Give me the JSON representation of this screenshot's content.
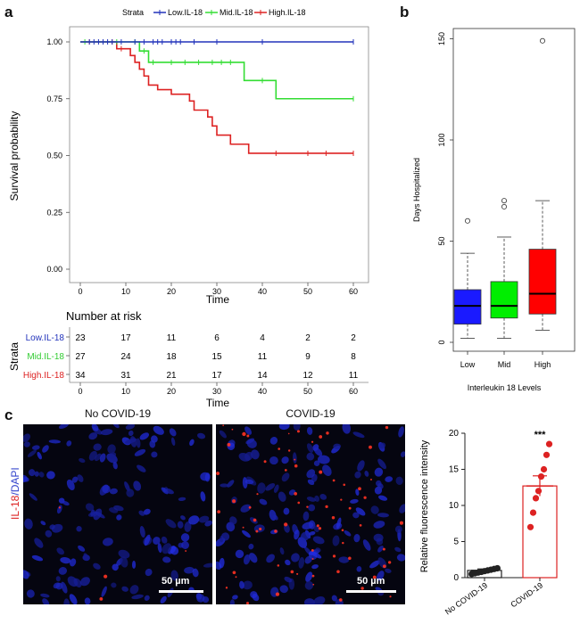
{
  "panels": {
    "a": "a",
    "b": "b",
    "c": "c"
  },
  "km": {
    "legend_title": "Strata",
    "ylabel": "Survival probability",
    "xlabel": "Time",
    "y_ticks": [
      "0.00",
      "0.25",
      "0.50",
      "0.75",
      "1.00"
    ],
    "x_ticks": [
      "0",
      "10",
      "20",
      "30",
      "40",
      "50",
      "60"
    ],
    "colors": {
      "low": "#2233bb",
      "mid": "#33dd33",
      "high": "#dd2222"
    }
  },
  "risk_table": {
    "title": "Number at risk",
    "strata_label": "Strata",
    "xlabel": "Time",
    "x_ticks": [
      "0",
      "10",
      "20",
      "30",
      "40",
      "50",
      "60"
    ],
    "rows": [
      {
        "label": "Low.IL-18",
        "color": "#2233bb",
        "values": [
          "23",
          "17",
          "11",
          "6",
          "4",
          "2",
          "2"
        ]
      },
      {
        "label": "Mid.IL-18",
        "color": "#33cc33",
        "values": [
          "27",
          "24",
          "18",
          "15",
          "11",
          "9",
          "8"
        ]
      },
      {
        "label": "High.IL-18",
        "color": "#dd2222",
        "values": [
          "34",
          "31",
          "21",
          "17",
          "14",
          "12",
          "11"
        ]
      }
    ]
  },
  "boxplot": {
    "ylabel": "Days Hospitalized",
    "xlabel": "Interleukin 18 Levels",
    "y_ticks": [
      "0",
      "50",
      "100",
      "150"
    ],
    "categories": [
      "Low",
      "Mid",
      "High"
    ]
  },
  "micro": {
    "left_title": "No COVID-19",
    "right_title": "COVID-19",
    "scale_text": "50 µm",
    "stain_label_red": "IL-18",
    "stain_label_sep": "/",
    "stain_label_blue": "DAPI"
  },
  "bar": {
    "ylabel": "Relative fluorescence intensity",
    "y_ticks": [
      "0",
      "5",
      "10",
      "15",
      "20"
    ],
    "categories": [
      "No COVID-19",
      "COVID-19"
    ],
    "significance": "***"
  },
  "chart_data": [
    {
      "type": "line",
      "chart": "kaplan-meier",
      "title": "",
      "xlabel": "Time",
      "ylabel": "Survival probability",
      "xlim": [
        0,
        60
      ],
      "ylim": [
        0,
        1
      ],
      "legend_title": "Strata",
      "legend_position": "top",
      "series": [
        {
          "name": "Low.IL-18",
          "color": "#2233bb",
          "x": [
            0,
            60
          ],
          "y": [
            1.0,
            1.0
          ],
          "censor_x": [
            2,
            3,
            4,
            5,
            6,
            7,
            9,
            12,
            14,
            16,
            17,
            18,
            20,
            21,
            22,
            25,
            30,
            40,
            60
          ]
        },
        {
          "name": "Mid.IL-18",
          "color": "#33dd33",
          "x": [
            0,
            13,
            15,
            36,
            43,
            60
          ],
          "y": [
            1.0,
            0.96,
            0.91,
            0.83,
            0.75,
            0.75
          ],
          "censor_x": [
            1,
            5,
            8,
            12,
            14,
            16,
            20,
            23,
            26,
            29,
            31,
            33,
            40,
            60
          ]
        },
        {
          "name": "High.IL-18",
          "color": "#dd2222",
          "x": [
            0,
            8,
            11,
            12,
            13,
            14,
            15,
            17,
            20,
            24,
            25,
            28,
            29,
            30,
            33,
            37,
            42,
            60
          ],
          "y": [
            1.0,
            0.97,
            0.94,
            0.91,
            0.88,
            0.85,
            0.81,
            0.79,
            0.77,
            0.74,
            0.7,
            0.67,
            0.63,
            0.59,
            0.55,
            0.51,
            0.51,
            0.51
          ],
          "censor_x": [
            2,
            7,
            9,
            43,
            50,
            54,
            60
          ]
        }
      ]
    },
    {
      "type": "box",
      "xlabel": "Interleukin 18 Levels",
      "ylabel": "Days Hospitalized",
      "ylim": [
        0,
        155
      ],
      "categories": [
        "Low",
        "Mid",
        "High"
      ],
      "series": [
        {
          "name": "Low",
          "color": "#1a1aff",
          "min": 2,
          "q1": 9,
          "median": 18,
          "q3": 26,
          "max": 44,
          "outliers": [
            60
          ]
        },
        {
          "name": "Mid",
          "color": "#00ee00",
          "min": 2,
          "q1": 12,
          "median": 18,
          "q3": 30,
          "max": 52,
          "outliers": [
            67,
            70
          ]
        },
        {
          "name": "High",
          "color": "#ff0000",
          "min": 6,
          "q1": 14,
          "median": 24,
          "q3": 46,
          "max": 70,
          "outliers": [
            149
          ]
        }
      ]
    },
    {
      "type": "bar",
      "ylabel": "Relative fluorescence intensity",
      "ylim": [
        0,
        20
      ],
      "categories": [
        "No COVID-19",
        "COVID-19"
      ],
      "values": [
        1.0,
        12.7
      ],
      "errors": [
        0.2,
        1.4
      ],
      "annotation": "***",
      "points": [
        [
          0.5,
          0.6,
          0.7,
          0.8,
          0.9,
          1.0,
          1.1,
          1.2,
          1.3
        ],
        [
          7.0,
          9.0,
          11.0,
          12.0,
          14.0,
          15.0,
          17.0,
          18.5
        ]
      ]
    }
  ]
}
